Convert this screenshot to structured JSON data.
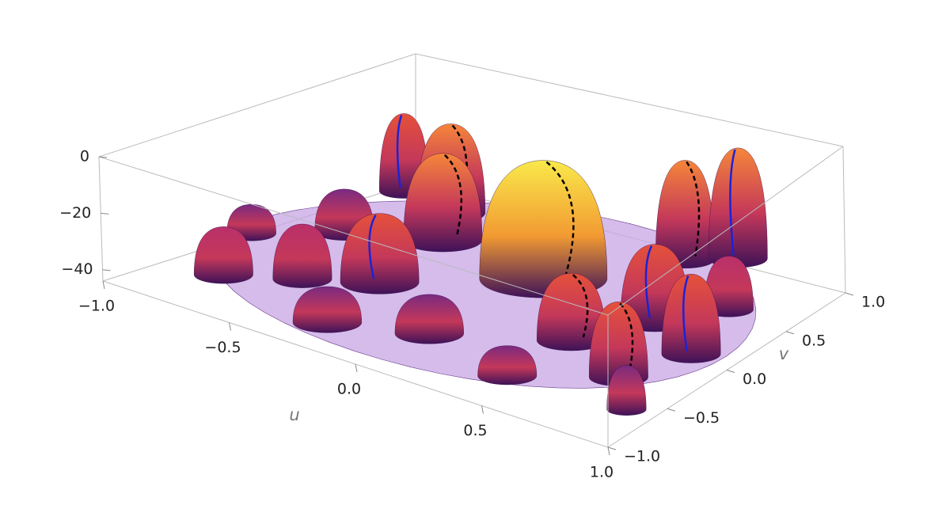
{
  "chart_data": {
    "type": "surface3d",
    "x_label": "u",
    "y_label": "v",
    "xlim": [
      -1,
      1
    ],
    "ylim": [
      -1,
      1
    ],
    "zlim": [
      -44,
      0
    ],
    "xticks": [
      {
        "value": -1,
        "label": "−1.0"
      },
      {
        "value": -0.5,
        "label": "−0.5"
      },
      {
        "value": 0,
        "label": "0.0"
      },
      {
        "value": 0.5,
        "label": "0.5"
      },
      {
        "value": 1,
        "label": "1.0"
      }
    ],
    "yticks": [
      {
        "value": -1,
        "label": "−1.0"
      },
      {
        "value": -0.5,
        "label": "−0.5"
      },
      {
        "value": 0,
        "label": "0.0"
      },
      {
        "value": 0.5,
        "label": "0.5"
      },
      {
        "value": 1,
        "label": "1.0"
      }
    ],
    "zticks": [
      0,
      {
        "value": -20,
        "label": "−20"
      },
      {
        "value": -40,
        "label": "−40"
      }
    ]
  }
}
